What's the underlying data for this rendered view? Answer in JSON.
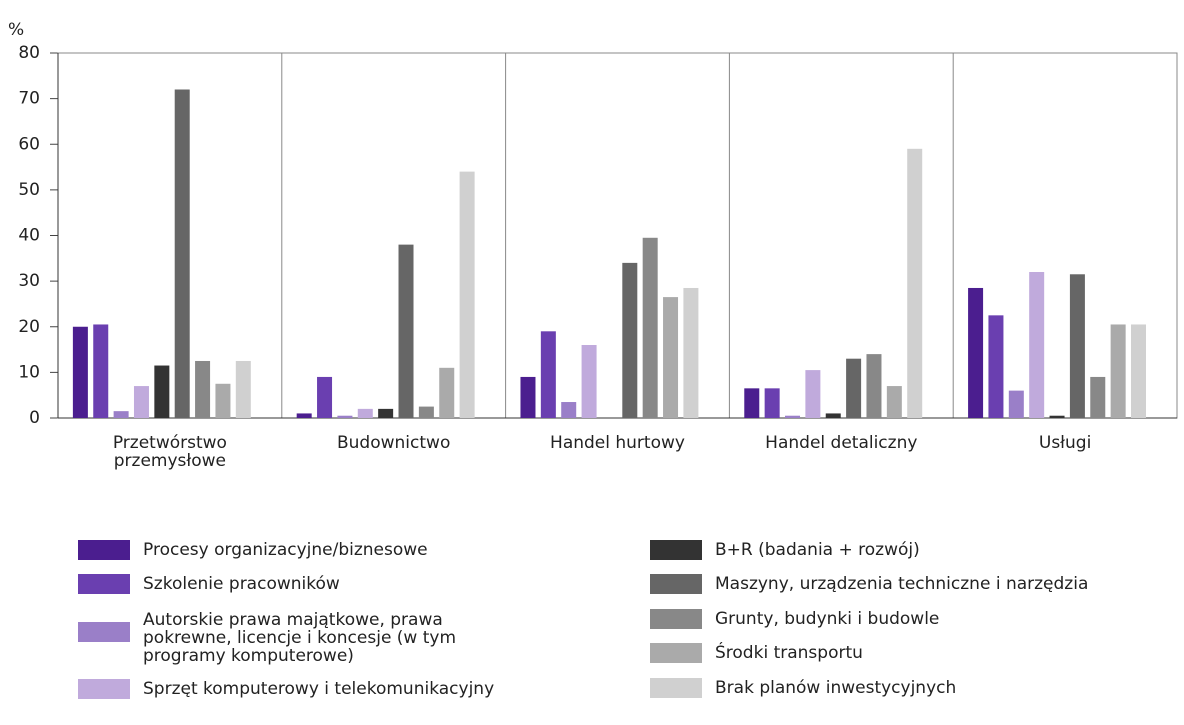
{
  "chart_data": {
    "type": "bar",
    "y_unit": "%",
    "categories": [
      "Przetwórstwo przemysłowe",
      "Budownictwo",
      "Handel hurtowy",
      "Handel detaliczny",
      "Usługi"
    ],
    "series": [
      {
        "name": "Procesy organizacyjne/biznesowe",
        "color": "#4b1e8f",
        "values": [
          20,
          1,
          9,
          6.5,
          28.5
        ]
      },
      {
        "name": "Szkolenie pracowników",
        "color": "#6a3fb0",
        "values": [
          20.5,
          9,
          19,
          6.5,
          22.5
        ]
      },
      {
        "name": "Autorskie prawa majątkowe, prawa pokrewne, licencje i koncesje (w tym programy komputerowe)",
        "color": "#9a7fc8",
        "values": [
          1.5,
          0.5,
          3.5,
          0.5,
          6
        ]
      },
      {
        "name": "Sprzęt komputerowy i telekomunikacyjny",
        "color": "#c0aadc",
        "values": [
          7,
          2,
          16,
          10.5,
          32
        ]
      },
      {
        "name": "B+R (badania + rozwój)",
        "color": "#333333",
        "values": [
          11.5,
          2,
          0,
          1,
          0.5
        ]
      },
      {
        "name": "Maszyny, urządzenia techniczne i narzędzia",
        "color": "#666666",
        "values": [
          72,
          38,
          34,
          13,
          31.5
        ]
      },
      {
        "name": "Grunty, budynki i budowle",
        "color": "#888888",
        "values": [
          12.5,
          2.5,
          39.5,
          14,
          9
        ]
      },
      {
        "name": "Środki transportu",
        "color": "#aaaaaa",
        "values": [
          7.5,
          11,
          26.5,
          7,
          20.5
        ]
      },
      {
        "name": "Brak planów inwestycyjnych",
        "color": "#d0d0d0",
        "values": [
          12.5,
          54,
          28.5,
          59,
          20.5
        ]
      }
    ],
    "ylim": [
      0,
      80
    ],
    "yticks": [
      0,
      10,
      20,
      30,
      40,
      50,
      60,
      70,
      80
    ],
    "grid": false
  }
}
